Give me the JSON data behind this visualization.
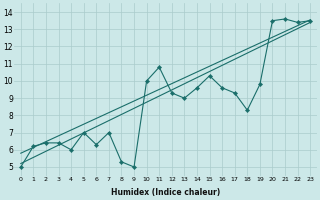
{
  "xlabel": "Humidex (Indice chaleur)",
  "xlim": [
    -0.5,
    23.5
  ],
  "ylim": [
    4.5,
    14.5
  ],
  "xticks": [
    0,
    1,
    2,
    3,
    4,
    5,
    6,
    7,
    8,
    9,
    10,
    11,
    12,
    13,
    14,
    15,
    16,
    17,
    18,
    19,
    20,
    21,
    22,
    23
  ],
  "yticks": [
    5,
    6,
    7,
    8,
    9,
    10,
    11,
    12,
    13,
    14
  ],
  "bg_color": "#cce8e8",
  "grid_color": "#aacccc",
  "line_color": "#1a6e6a",
  "zigzag_x": [
    0,
    1,
    2,
    3,
    4,
    5,
    6,
    7,
    8,
    9,
    10,
    11,
    12,
    13,
    14,
    15,
    16,
    17,
    18,
    19,
    20,
    21,
    22,
    23
  ],
  "zigzag_y": [
    5.0,
    6.2,
    6.4,
    6.4,
    6.0,
    7.0,
    6.3,
    7.0,
    5.3,
    5.0,
    10.0,
    10.8,
    9.3,
    9.0,
    9.6,
    10.3,
    9.6,
    9.3,
    8.3,
    9.8,
    13.5,
    13.6,
    13.4,
    13.5
  ],
  "trend1_x": [
    0,
    23
  ],
  "trend1_y": [
    5.2,
    13.4
  ],
  "trend2_x": [
    0,
    23
  ],
  "trend2_y": [
    5.8,
    13.55
  ],
  "xlabel_fontsize": 5.5,
  "tick_fontsize_x": 4.5,
  "tick_fontsize_y": 5.5
}
